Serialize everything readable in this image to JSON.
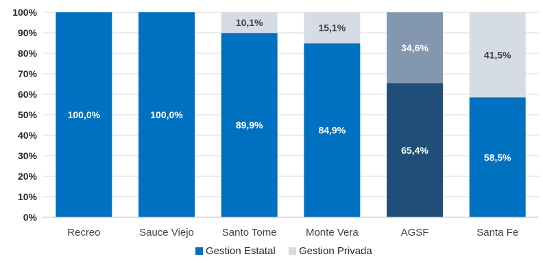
{
  "chart_data": {
    "type": "bar",
    "stacked": true,
    "percent_scale": true,
    "categories": [
      "Recreo",
      "Sauce Viejo",
      "Santo Tome",
      "Monte Vera",
      "AGSF",
      "Santa Fe"
    ],
    "series": [
      {
        "name": "Gestion Estatal",
        "values": [
          100.0,
          100.0,
          89.9,
          84.9,
          65.4,
          58.5
        ],
        "labels": [
          "100,0%",
          "100,0%",
          "89,9%",
          "84,9%",
          "65,4%",
          "58,5%"
        ]
      },
      {
        "name": "Gestion Privada",
        "values": [
          0,
          0,
          10.1,
          15.1,
          34.6,
          41.5
        ],
        "labels": [
          "",
          "",
          "10,1%",
          "15,1%",
          "34,6%",
          "41,5%"
        ]
      }
    ],
    "y_ticks": [
      "0%",
      "10%",
      "20%",
      "30%",
      "40%",
      "50%",
      "60%",
      "70%",
      "80%",
      "90%",
      "100%"
    ],
    "ylim": [
      0,
      100
    ],
    "grid": true,
    "legend_position": "bottom",
    "colors": {
      "estatal": "#0070c0",
      "privada": "#d6dce4",
      "estatal_highlight": "#1f4e79",
      "privada_highlight": "#8497b0",
      "grid": "#d9d9d9",
      "axis": "#bfbfbf",
      "label_on_dark": "#ffffff",
      "label_on_light": "#404040"
    },
    "highlight_category": "AGSF"
  }
}
